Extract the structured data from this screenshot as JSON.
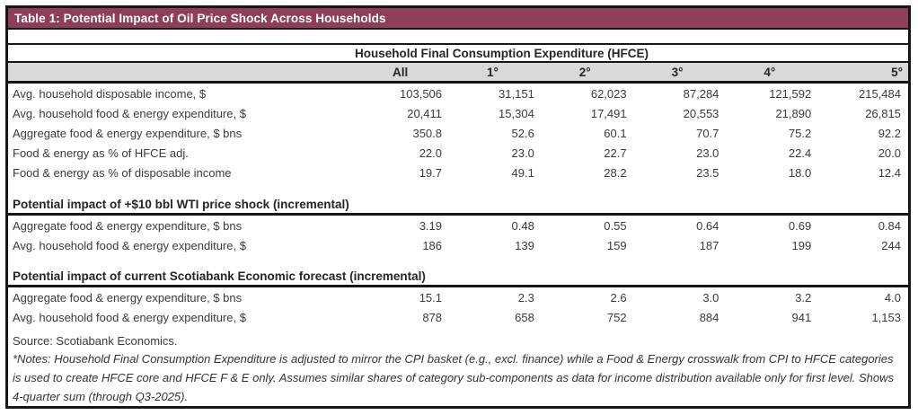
{
  "title_bar": {
    "text": "Table 1: Potential Impact of Oil Price Shock Across Households"
  },
  "colors": {
    "title_bg": "#8E3E58",
    "header_row_bg": "#D9D9D9",
    "border": "#161616"
  },
  "table": {
    "group_header": "Household Final Consumption Expenditure (HFCE)",
    "columns": [
      "All",
      "1°",
      "2°",
      "3°",
      "4°",
      "5°"
    ],
    "sections": [
      {
        "header": null,
        "rows": [
          {
            "label": "Avg. household disposable income, $",
            "values": [
              "103,506",
              "31,151",
              "62,023",
              "87,284",
              "121,592",
              "215,484"
            ]
          },
          {
            "label": "Avg. household food & energy expenditure, $",
            "values": [
              "20,411",
              "15,304",
              "17,491",
              "20,553",
              "21,890",
              "26,815"
            ]
          },
          {
            "label": "Aggregate food & energy expenditure, $ bns",
            "values": [
              "350.8",
              "52.6",
              "60.1",
              "70.7",
              "75.2",
              "92.2"
            ]
          },
          {
            "label": "Food & energy as % of HFCE adj.",
            "values": [
              "22.0",
              "23.0",
              "22.7",
              "23.0",
              "22.4",
              "20.0"
            ]
          },
          {
            "label": "Food & energy as % of disposable income",
            "values": [
              "19.7",
              "49.1",
              "28.2",
              "23.5",
              "18.0",
              "12.4"
            ]
          }
        ]
      },
      {
        "header": "Potential impact of +$10 bbl WTI price shock (incremental)",
        "rows": [
          {
            "label": "Aggregate food & energy expenditure, $ bns",
            "values": [
              "3.19",
              "0.48",
              "0.55",
              "0.64",
              "0.69",
              "0.84"
            ]
          },
          {
            "label": "Avg. household food & energy expenditure, $",
            "values": [
              "186",
              "139",
              "159",
              "187",
              "199",
              "244"
            ]
          }
        ]
      },
      {
        "header": "Potential impact of current Scotiabank Economic forecast (incremental)",
        "rows": [
          {
            "label": "Aggregate food & energy expenditure, $ bns",
            "values": [
              "15.1",
              "2.3",
              "2.6",
              "3.0",
              "3.2",
              "4.0"
            ]
          },
          {
            "label": "Avg. household food & energy expenditure, $",
            "values": [
              "878",
              "658",
              "752",
              "884",
              "941",
              "1,153"
            ]
          }
        ]
      }
    ]
  },
  "footer": {
    "source": "Source: Scotiabank Economics.",
    "notes": "*Notes: Household Final Consumption Expenditure is adjusted to mirror the CPI basket (e.g., excl. finance) while a Food & Energy crosswalk from CPI to HFCE categories is used to create HFCE core and HFCE F & E only. Assumes similar shares of category sub-components as data for income distribution available only for first level. Shows 4-quarter sum (through Q3-2025)."
  }
}
